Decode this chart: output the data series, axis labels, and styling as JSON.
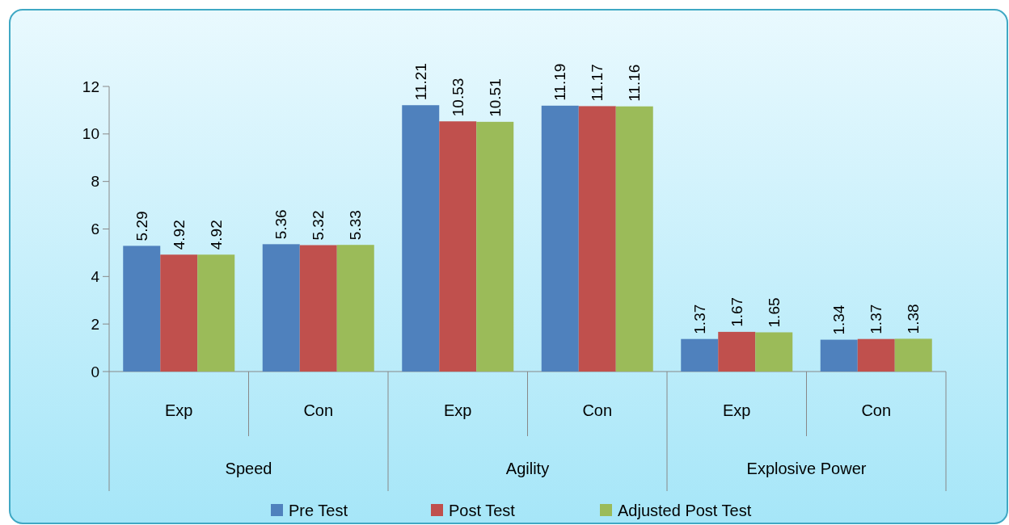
{
  "chart_data": {
    "type": "bar",
    "categories": [
      "Exp",
      "Con",
      "Exp",
      "Con",
      "Exp",
      "Con"
    ],
    "series": [
      {
        "name": "Pre Test",
        "color": "#4f81bd",
        "values": [
          5.29,
          5.36,
          11.21,
          11.19,
          1.37,
          1.34
        ]
      },
      {
        "name": "Post Test",
        "color": "#c0504d",
        "values": [
          4.92,
          5.32,
          10.53,
          11.17,
          1.67,
          1.37
        ]
      },
      {
        "name": "Adjusted Post Test",
        "color": "#9bbb59",
        "values": [
          4.92,
          5.33,
          10.51,
          11.16,
          1.65,
          1.38
        ]
      }
    ],
    "annotations": [
      "Speed",
      "Agility",
      "Explosive Power"
    ],
    "ylim": [
      0,
      12
    ],
    "yticks": [
      0,
      2,
      4,
      6,
      8,
      10,
      12
    ],
    "data_labels": true,
    "legend": "bottom",
    "grid": false
  }
}
